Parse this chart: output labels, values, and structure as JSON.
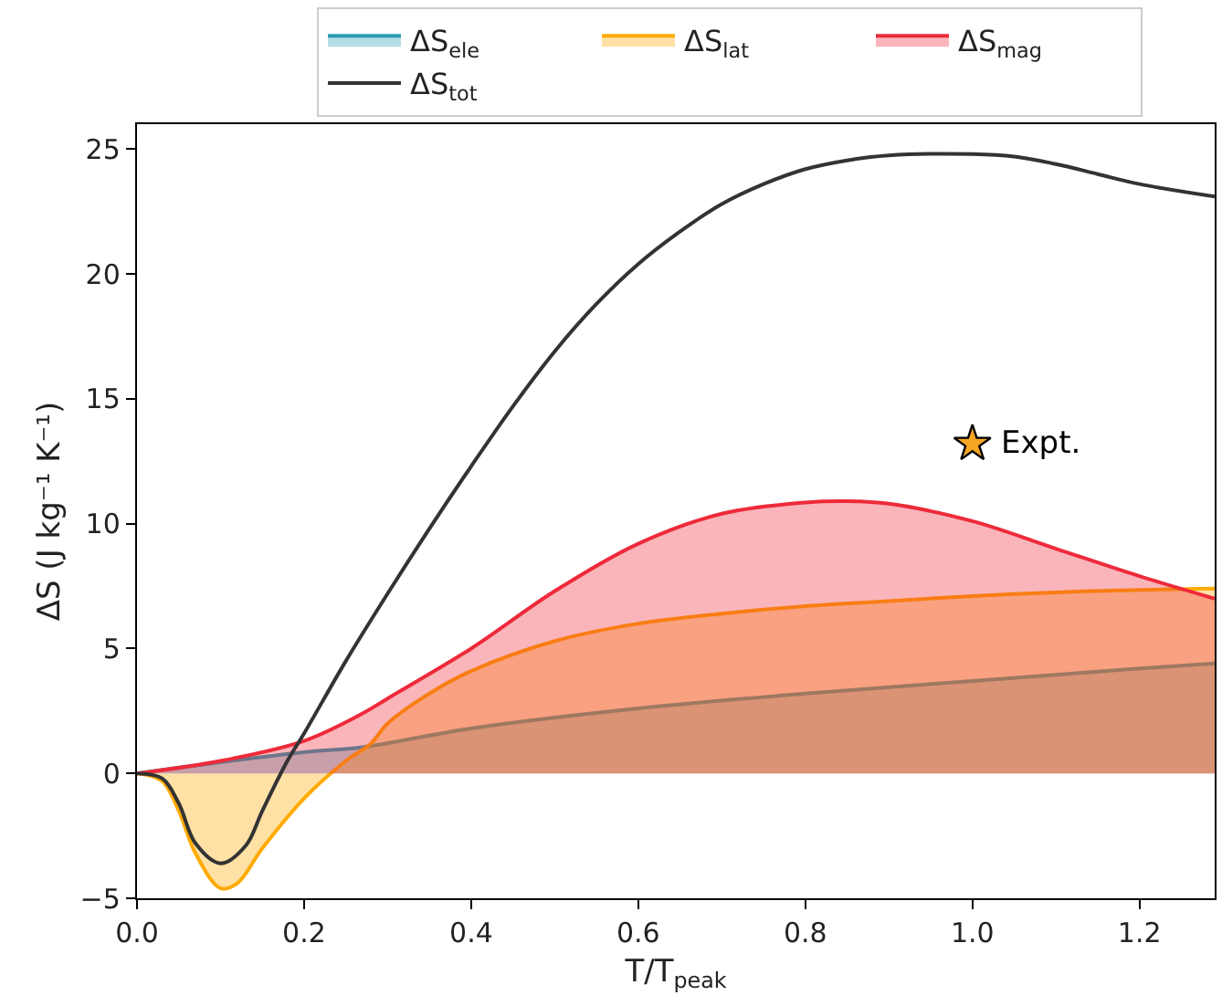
{
  "chart_data": {
    "type": "area",
    "xlabel": "T/T$_{peak}$",
    "ylabel": "ΔS (J kg⁻¹ K⁻¹)",
    "xlim": [
      0,
      1.29
    ],
    "xticks": [
      {
        "value": 0,
        "label": "0.0"
      },
      0.2,
      0.4,
      0.6,
      0.8,
      {
        "value": 1,
        "label": "1.0"
      },
      1.2
    ],
    "ylim": [
      -5,
      26
    ],
    "yticks": [
      {
        "value": -5,
        "label": "−5"
      },
      0,
      5,
      10,
      15,
      20,
      25
    ],
    "legend": "top",
    "series": [
      {
        "name": "ΔS$_{ele}$",
        "color": "#2a9db5",
        "x": [
          0,
          0.1,
          0.2,
          0.27,
          0.4,
          0.6,
          0.8,
          1.0,
          1.2,
          1.29
        ],
        "values": [
          0,
          0.45,
          0.85,
          1.05,
          1.8,
          2.6,
          3.2,
          3.7,
          4.2,
          4.4
        ]
      },
      {
        "name": "ΔS$_{lat}$",
        "color": "#ffaa00",
        "x": [
          0,
          0.03,
          0.05,
          0.07,
          0.1,
          0.12,
          0.15,
          0.2,
          0.25,
          0.28,
          0.3,
          0.35,
          0.4,
          0.5,
          0.6,
          0.7,
          0.8,
          0.9,
          1.0,
          1.1,
          1.2,
          1.29
        ],
        "values": [
          0,
          -0.3,
          -1.5,
          -3.2,
          -4.6,
          -4.4,
          -3.0,
          -1.0,
          0.5,
          1.2,
          2.0,
          3.2,
          4.1,
          5.3,
          6.0,
          6.4,
          6.7,
          6.9,
          7.1,
          7.25,
          7.35,
          7.4
        ]
      },
      {
        "name": "ΔS$_{mag}$",
        "color": "#ee2a3a",
        "x": [
          0,
          0.1,
          0.2,
          0.27,
          0.3,
          0.4,
          0.5,
          0.6,
          0.7,
          0.8,
          0.85,
          0.9,
          1.0,
          1.1,
          1.2,
          1.29
        ],
        "values": [
          0,
          0.5,
          1.3,
          2.4,
          3.0,
          5.0,
          7.3,
          9.2,
          10.4,
          10.85,
          10.9,
          10.8,
          10.1,
          9.0,
          7.9,
          7.0
        ]
      },
      {
        "name": "ΔS$_{tot}$",
        "type": "line",
        "color": "#333333",
        "x": [
          0,
          0.03,
          0.05,
          0.07,
          0.1,
          0.13,
          0.15,
          0.18,
          0.2,
          0.25,
          0.3,
          0.35,
          0.4,
          0.45,
          0.5,
          0.55,
          0.6,
          0.65,
          0.7,
          0.75,
          0.8,
          0.85,
          0.9,
          1.0,
          1.05,
          1.1,
          1.15,
          1.2,
          1.29
        ],
        "values": [
          0,
          -0.2,
          -1.2,
          -2.8,
          -3.6,
          -2.9,
          -1.5,
          0.5,
          1.6,
          4.5,
          7.2,
          9.8,
          12.3,
          14.7,
          16.9,
          18.8,
          20.4,
          21.7,
          22.8,
          23.6,
          24.2,
          24.55,
          24.75,
          24.8,
          24.7,
          24.4,
          24.0,
          23.6,
          23.1
        ]
      },
      {
        "type": "scatter",
        "marker": "star",
        "color": "#f5a623",
        "x": [
          1.0
        ],
        "values": [
          13.2
        ]
      }
    ],
    "annotations": [
      {
        "text": "Expt.",
        "x": 1.0,
        "y": 13.2
      }
    ]
  }
}
